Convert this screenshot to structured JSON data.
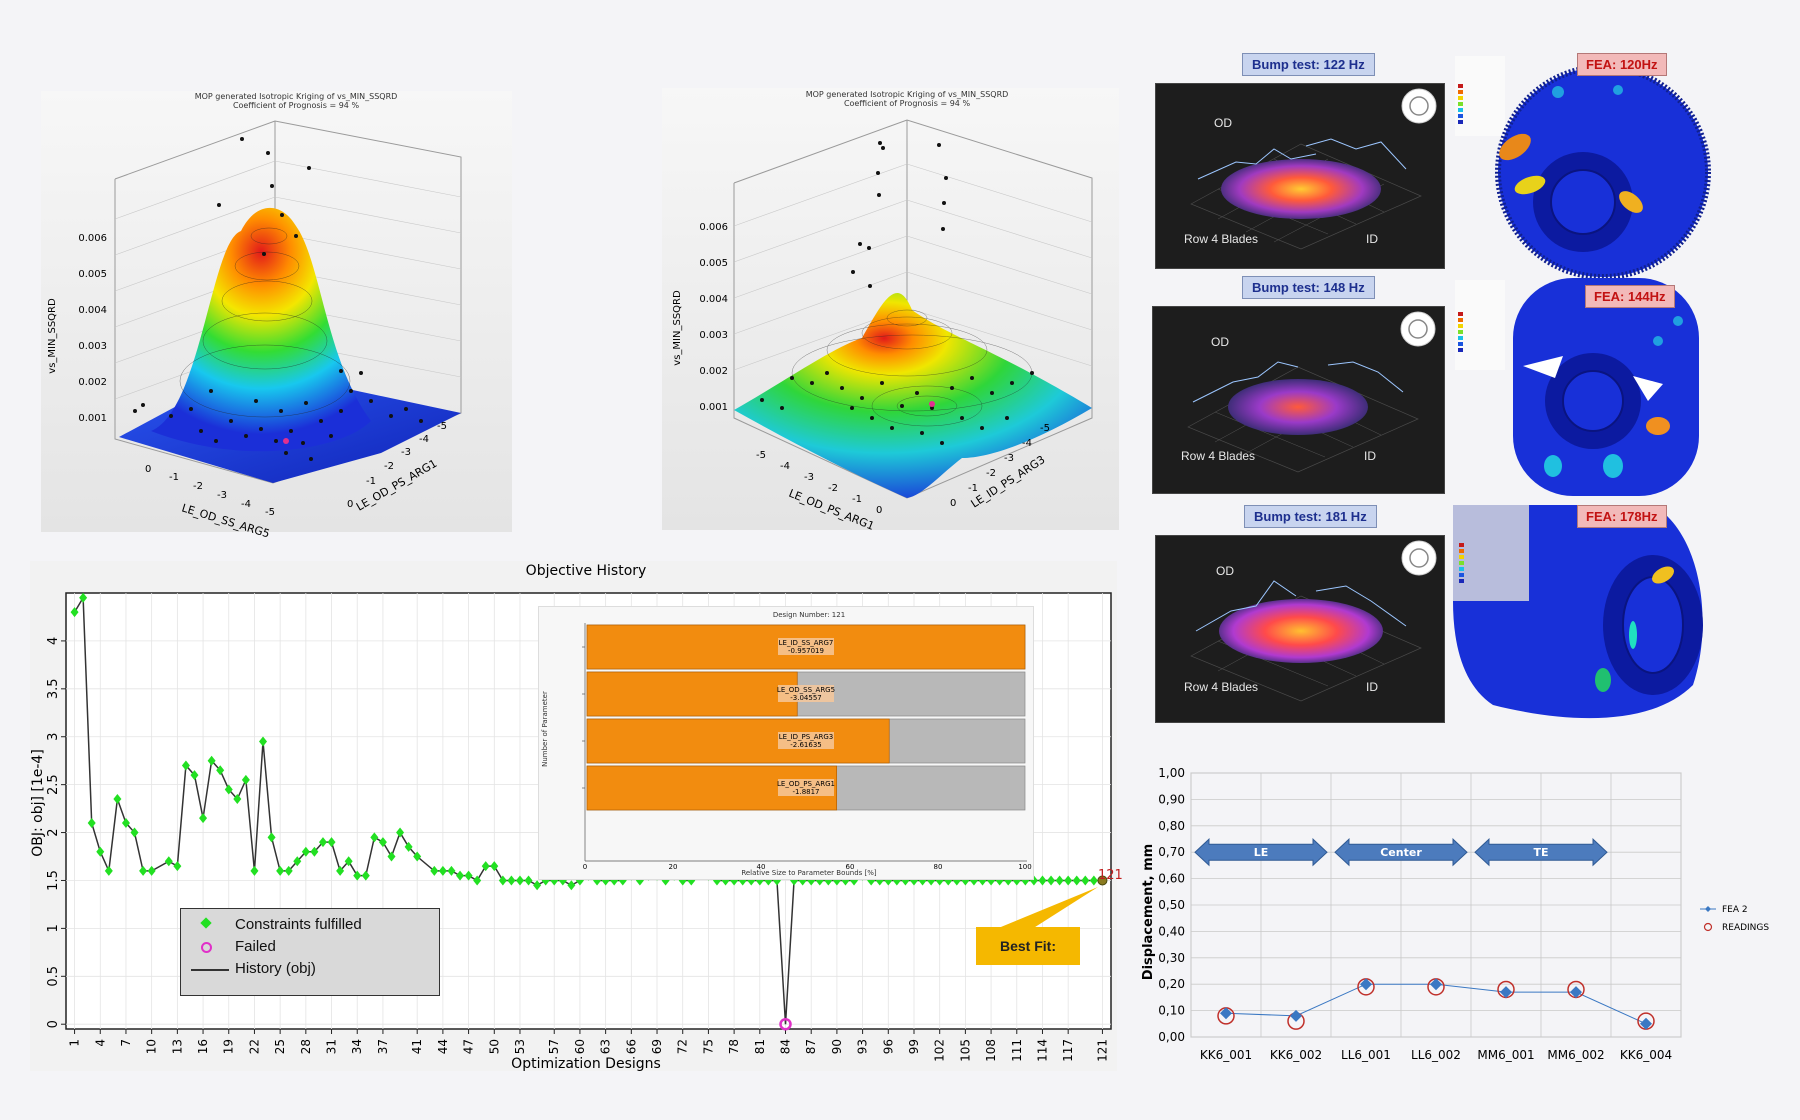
{
  "surface_left": {
    "title1": "MOP generated Isotropic Kriging  of vs_MIN_SSQRD",
    "title2": "Coefficient of Prognosis = 94 %",
    "zlabel": "vs_MIN_SSQRD",
    "zticks": [
      "0.006",
      "0.005",
      "0.004",
      "0.003",
      "0.002",
      "0.001"
    ],
    "xlabel": "LE_OD_SS_ARG5",
    "ylabel": "LE_OD_PS_ARG1",
    "xticks": [
      "0",
      "-1",
      "-2",
      "-3",
      "-4",
      "-5"
    ],
    "yticks": [
      "0",
      "-1",
      "-2",
      "-3",
      "-4",
      "-5"
    ]
  },
  "surface_right": {
    "title1": "MOP generated Isotropic Kriging  of vs_MIN_SSQRD",
    "title2": "Coefficient of Prognosis = 94 %",
    "zlabel": "vs_MIN_SSQRD",
    "zticks": [
      "0.006",
      "0.005",
      "0.004",
      "0.003",
      "0.002",
      "0.001"
    ],
    "xlabel": "LE_OD_PS_ARG1",
    "ylabel": "LE_ID_PS_ARG3",
    "xticks": [
      "-5",
      "-4",
      "-3",
      "-2",
      "-1",
      "0"
    ],
    "yticks": [
      "0",
      "-1",
      "-2",
      "-3",
      "-4",
      "-5"
    ]
  },
  "modal": {
    "rows": [
      {
        "bump": "Bump test: 122 Hz",
        "fea": "FEA: 120Hz"
      },
      {
        "bump": "Bump test: 148 Hz",
        "fea": "FEA: 144Hz"
      },
      {
        "bump": "Bump test: 181 Hz",
        "fea": "FEA: 178Hz"
      }
    ],
    "od_label": "OD",
    "id_label": "ID",
    "row_label": "Row 4 Blades"
  },
  "objective": {
    "title": "Objective History",
    "ylabel": "OBJ: obj] [1e-4]",
    "xlabel": "Optimization Designs",
    "legend": {
      "fulfilled": "Constraints fulfilled",
      "failed": "Failed",
      "history": "History (obj)"
    },
    "best_fit": "Best Fit:",
    "best_label": "121",
    "colors": {
      "fulfilled": "#22e022",
      "failed": "#e030c8",
      "line": "#333333",
      "best": "#c02020"
    }
  },
  "parameter_inset": {
    "title": "Design Number: 121",
    "ylabel": "Number of Parameter",
    "xlabel": "Relative Size to Parameter Bounds [%]",
    "xticks": [
      "0",
      "20",
      "40",
      "60",
      "80",
      "100"
    ],
    "bars": [
      {
        "name": "LE_ID_SS_ARG7",
        "value": "-0.957019",
        "pct": 100
      },
      {
        "name": "LE_OD_SS_ARG5",
        "value": "-3.04557",
        "pct": 48
      },
      {
        "name": "LE_ID_PS_ARG3",
        "value": "-2.61635",
        "pct": 69
      },
      {
        "name": "LE_OD_PS_ARG1",
        "value": "-1.8817",
        "pct": 57
      }
    ]
  },
  "chart_data": [
    {
      "type": "line",
      "title": "Objective History",
      "xlabel": "Optimization Designs",
      "ylabel": "OBJ: obj] [1e-4]",
      "ylim": [
        0,
        4.5
      ],
      "x_ticks": [
        1,
        4,
        7,
        10,
        13,
        16,
        19,
        22,
        25,
        28,
        31,
        34,
        37,
        41,
        44,
        47,
        50,
        53,
        57,
        60,
        63,
        66,
        69,
        72,
        75,
        78,
        81,
        84,
        87,
        90,
        93,
        96,
        99,
        102,
        105,
        108,
        111,
        114,
        117,
        121
      ],
      "y_ticks": [
        0,
        0.5,
        1,
        1.5,
        2,
        2.5,
        3,
        3.5,
        4
      ],
      "series": [
        {
          "name": "History (obj)",
          "x": [
            1,
            2,
            3,
            4,
            5,
            6,
            7,
            8,
            9,
            10,
            12,
            13,
            14,
            15,
            16,
            17,
            18,
            19,
            20,
            21,
            22,
            23,
            24,
            25,
            26,
            27,
            28,
            29,
            30,
            31,
            32,
            33,
            34,
            35,
            36,
            37,
            38,
            39,
            40,
            41,
            43,
            44,
            45,
            46,
            47,
            48,
            49,
            50,
            51,
            52,
            53,
            54,
            55,
            56,
            57,
            58,
            59,
            60,
            61,
            62,
            63,
            64,
            65,
            66,
            67,
            68,
            69,
            70,
            71,
            72,
            73,
            74,
            75,
            76,
            77,
            78,
            79,
            80,
            81,
            82,
            83,
            84,
            85,
            86,
            87,
            88,
            89,
            90,
            91,
            92,
            93,
            94,
            95,
            96,
            97,
            98,
            99,
            100,
            101,
            102,
            103,
            104,
            105,
            106,
            107,
            108,
            109,
            110,
            111,
            112,
            113,
            114,
            115,
            116,
            117,
            118,
            119,
            120,
            121
          ],
          "y": [
            4.3,
            4.45,
            2.1,
            1.8,
            1.6,
            2.35,
            2.1,
            2.0,
            1.6,
            1.6,
            1.7,
            1.65,
            2.7,
            2.6,
            2.15,
            2.75,
            2.65,
            2.45,
            2.35,
            2.55,
            1.6,
            2.95,
            1.95,
            1.6,
            1.6,
            1.7,
            1.8,
            1.8,
            1.9,
            1.9,
            1.6,
            1.7,
            1.55,
            1.55,
            1.95,
            1.9,
            1.75,
            2.0,
            1.85,
            1.75,
            1.6,
            1.6,
            1.6,
            1.55,
            1.55,
            1.5,
            1.65,
            1.65,
            1.5,
            1.5,
            1.5,
            1.5,
            1.45,
            1.5,
            1.5,
            1.5,
            1.45,
            1.5,
            1.55,
            1.5,
            1.5,
            1.5,
            1.5,
            1.55,
            1.5,
            1.55,
            1.55,
            1.5,
            1.55,
            1.5,
            1.5,
            1.6,
            1.55,
            1.5,
            1.5,
            1.5,
            1.5,
            1.5,
            1.5,
            1.5,
            1.5,
            0.0,
            1.5,
            1.5,
            1.5,
            1.5,
            1.5,
            1.5,
            1.5,
            1.5,
            1.55,
            1.5,
            1.5,
            1.5,
            1.5,
            1.5,
            1.5,
            1.5,
            1.5,
            1.5,
            1.5,
            1.5,
            1.5,
            1.5,
            1.5,
            1.5,
            1.5,
            1.5,
            1.5,
            1.5,
            1.5,
            1.5,
            1.5,
            1.5,
            1.5,
            1.5,
            1.5,
            1.5,
            1.5
          ]
        }
      ],
      "failed_points": [
        {
          "x": 84,
          "y": 0.0
        }
      ],
      "best_point": {
        "x": 121,
        "y": 1.5
      }
    },
    {
      "type": "line",
      "title": "",
      "xlabel": "",
      "ylabel": "Displacement, mm",
      "categories": [
        "KK6_001",
        "KK6_002",
        "LL6_001",
        "LL6_002",
        "MM6_001",
        "MM6_002",
        "KK6_004"
      ],
      "ylim": [
        0,
        1.0
      ],
      "y_ticks": [
        "0,00",
        "0,10",
        "0,20",
        "0,30",
        "0,40",
        "0,50",
        "0,60",
        "0,70",
        "0,80",
        "0,90",
        "1,00"
      ],
      "series": [
        {
          "name": "FEA 2",
          "values": [
            0.09,
            0.08,
            0.2,
            0.2,
            0.17,
            0.17,
            0.05
          ]
        },
        {
          "name": "READINGS",
          "values": [
            0.08,
            0.06,
            0.19,
            0.19,
            0.18,
            0.18,
            0.06
          ]
        }
      ],
      "annotations": [
        {
          "text": "LE",
          "from": 0,
          "to": 1
        },
        {
          "text": "Center",
          "from": 2,
          "to": 3
        },
        {
          "text": "TE",
          "from": 4,
          "to": 5
        }
      ],
      "colors": {
        "FEA 2": "#3a78c3",
        "READINGS": "#c0302a"
      }
    }
  ]
}
